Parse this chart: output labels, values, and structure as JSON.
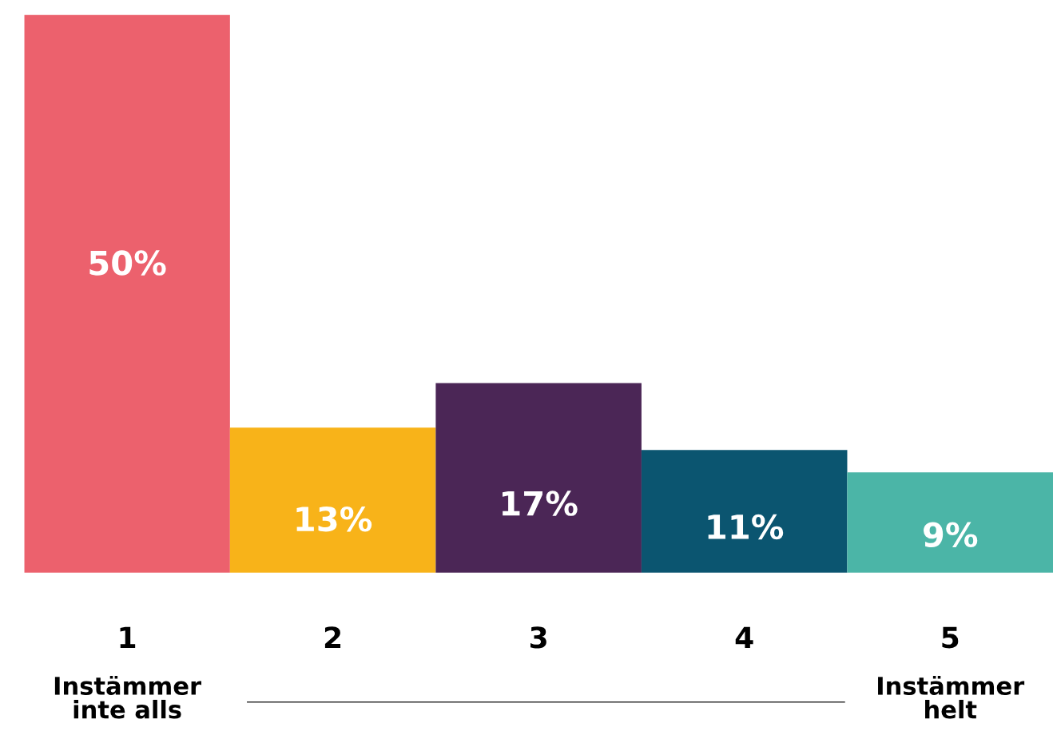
{
  "chart_data": {
    "type": "bar",
    "categories": [
      "1",
      "2",
      "3",
      "4",
      "5"
    ],
    "values": [
      50,
      13,
      17,
      11,
      9
    ],
    "colors": [
      "#ec616d",
      "#f8b319",
      "#4b2656",
      "#0b5570",
      "#4bb5a7"
    ],
    "value_labels": [
      "50%",
      "13%",
      "17%",
      "11%",
      "9%"
    ],
    "annotations": [
      "Instämmer inte alls",
      "Instämmer helt"
    ]
  }
}
